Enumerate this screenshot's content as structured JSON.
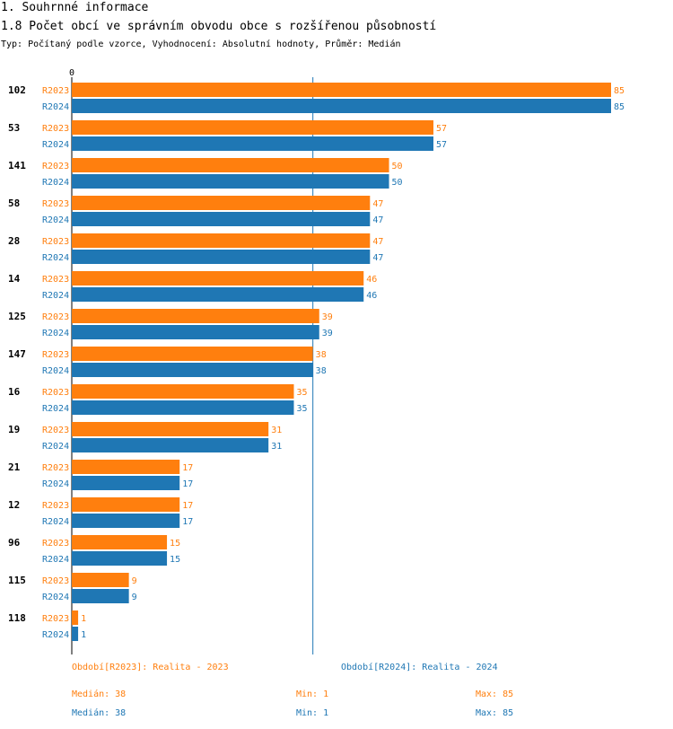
{
  "header": {
    "section": "1. Souhrnné informace",
    "title": "1.8 Počet obcí ve správním obvodu obce s rozšířenou působností",
    "subtitle": "Typ: Počítaný podle vzorce, Vyhodnocení: Absolutní hodnoty, Průměr: Medián"
  },
  "colors": {
    "r2023": "#ff7f0e",
    "r2024": "#1f77b4",
    "median_line": "#1f77b4"
  },
  "chart_data": {
    "type": "bar",
    "orientation": "horizontal",
    "axis_zero_label": "0",
    "xlim": [
      0,
      85
    ],
    "median_line_value": 38,
    "categories": [
      "102",
      "53",
      "141",
      "58",
      "28",
      "14",
      "125",
      "147",
      "16",
      "19",
      "21",
      "12",
      "96",
      "115",
      "118"
    ],
    "series": [
      {
        "name": "R2023",
        "values": [
          85,
          57,
          50,
          47,
          47,
          46,
          39,
          38,
          35,
          31,
          17,
          17,
          15,
          9,
          1
        ]
      },
      {
        "name": "R2024",
        "values": [
          85,
          57,
          50,
          47,
          47,
          46,
          39,
          38,
          35,
          31,
          17,
          17,
          15,
          9,
          1
        ]
      }
    ]
  },
  "legend": {
    "r2023": "Období[R2023]: Realita - 2023",
    "r2024": "Období[R2024]: Realita - 2024"
  },
  "stats": {
    "r2023": {
      "median": "Medián: 38",
      "min": "Min: 1",
      "max": "Max: 85"
    },
    "r2024": {
      "median": "Medián: 38",
      "min": "Min: 1",
      "max": "Max: 85"
    }
  }
}
